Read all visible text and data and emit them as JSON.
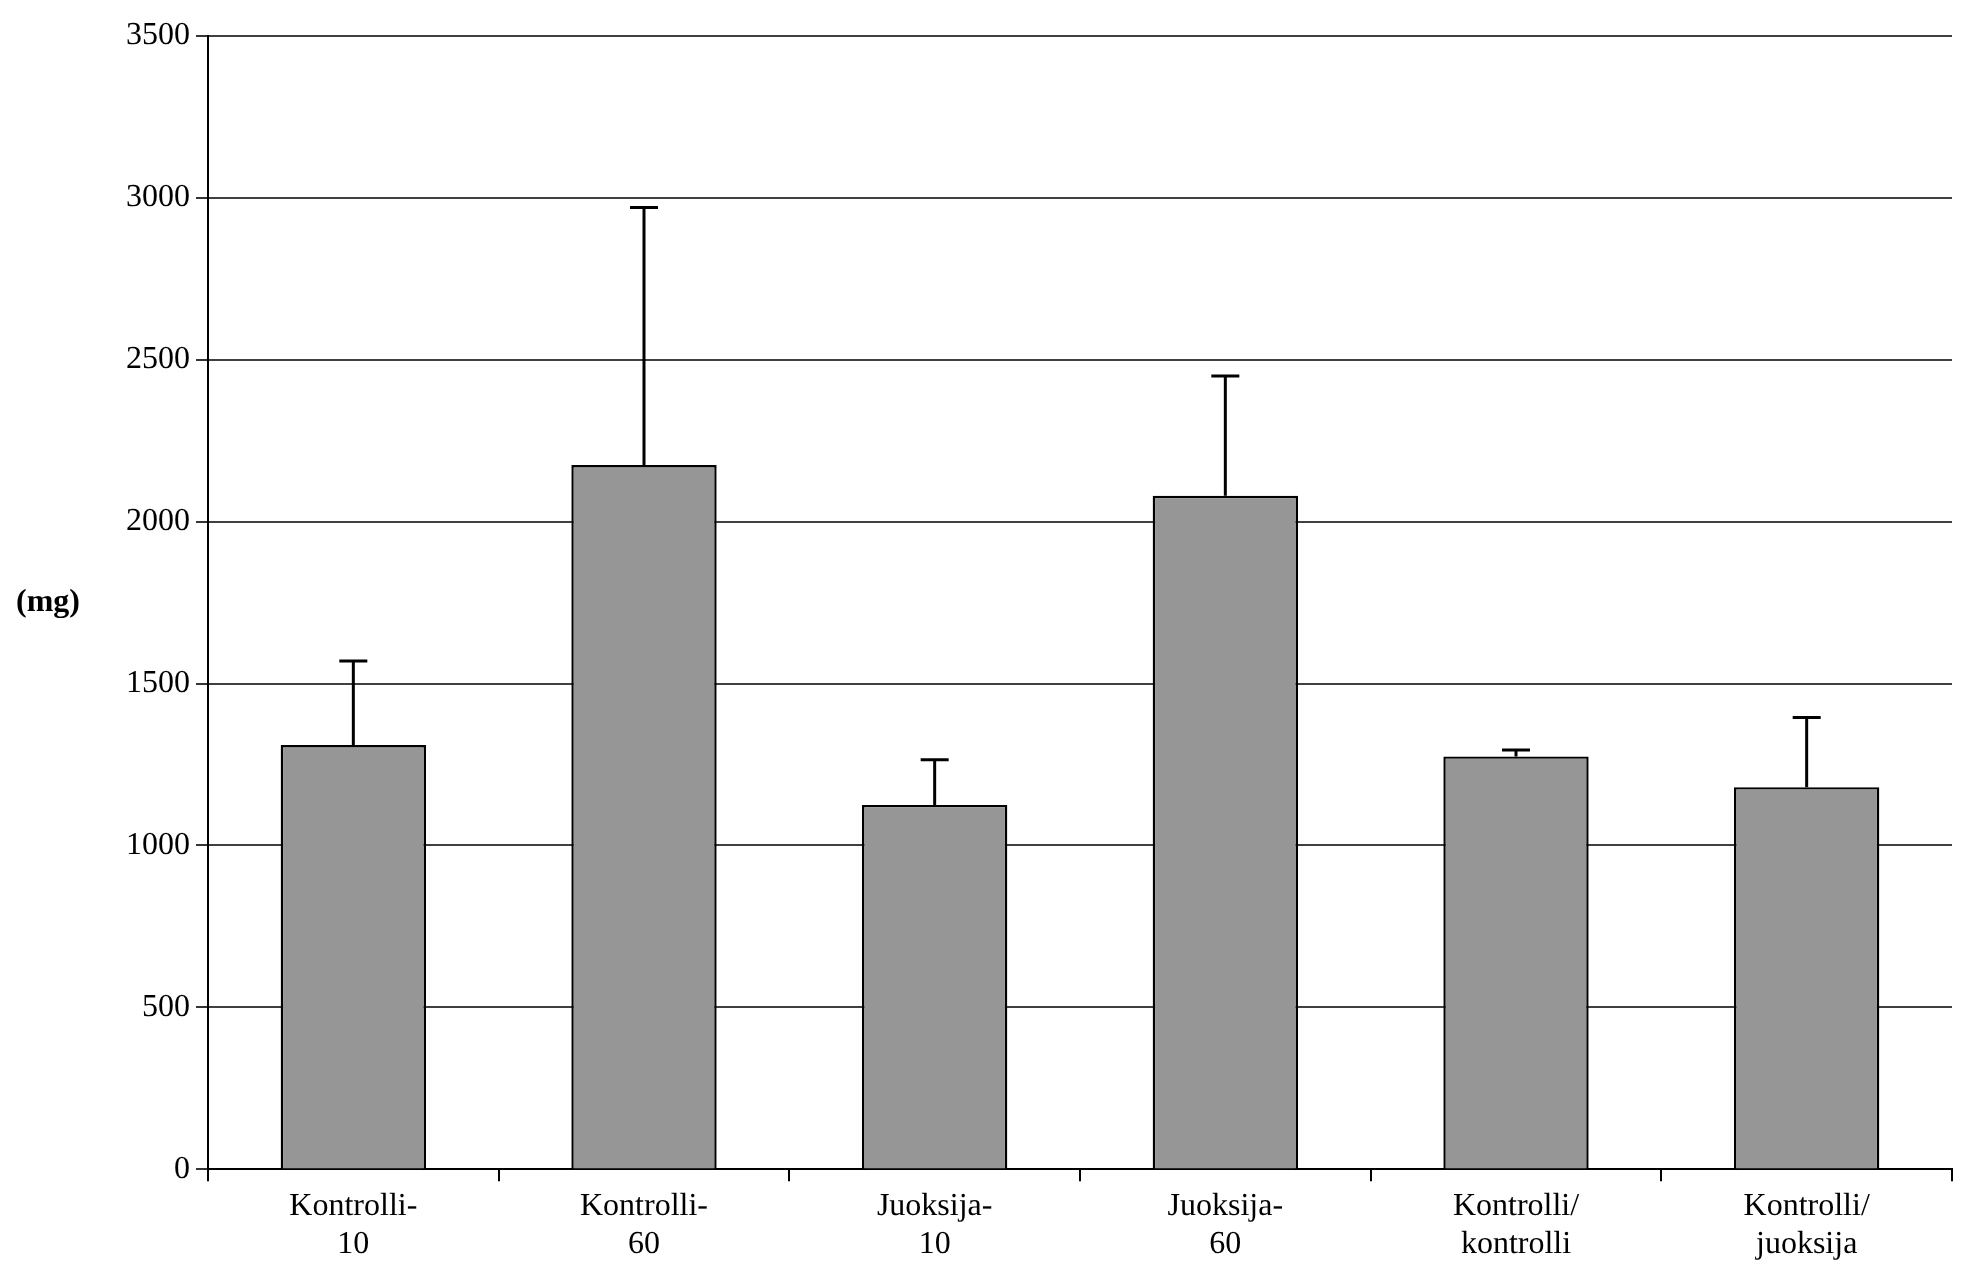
{
  "chart_data": {
    "type": "bar",
    "ylabel": "(mg)",
    "categories": [
      "Kontrolli-10",
      "Kontrolli-60",
      "Juoksija-10",
      "Juoksija-60",
      "Kontrolli/kontrolli",
      "Kontrolli/juoksija"
    ],
    "values": [
      1310,
      2175,
      1125,
      2080,
      1275,
      1180
    ],
    "errors": [
      [
        1310,
        1570
      ],
      [
        2175,
        2970
      ],
      [
        1125,
        1265
      ],
      [
        2080,
        2450
      ],
      [
        1275,
        1295
      ],
      [
        1180,
        1395
      ]
    ],
    "color": "#969696",
    "ylim": [
      0,
      3500
    ],
    "yticks": [
      0,
      500,
      1000,
      1500,
      2000,
      2500,
      3000,
      3500
    ],
    "grid": "y",
    "legend": false
  }
}
